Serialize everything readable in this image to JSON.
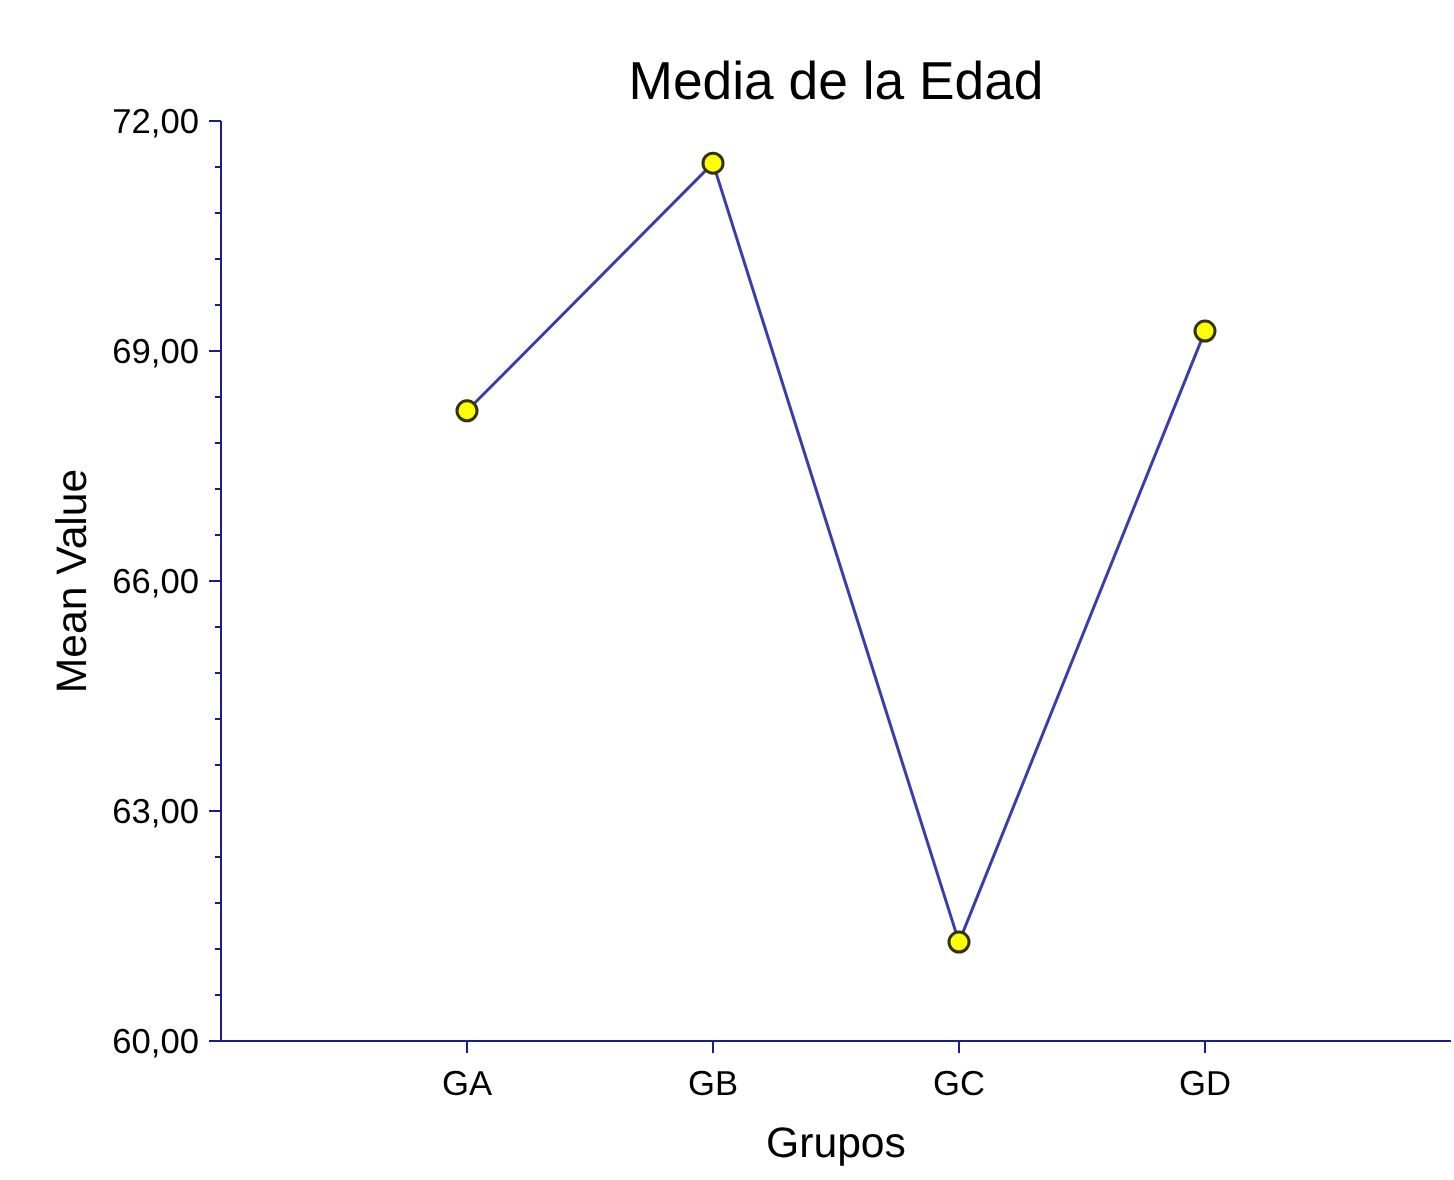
{
  "chart_data": {
    "type": "line",
    "title": "Media de la Edad",
    "xlabel": "Grupos",
    "ylabel": "Mean Value",
    "categories": [
      "GA",
      "GB",
      "GC",
      "GD"
    ],
    "series": [
      {
        "color": "#3c3ca8",
        "values": [
          68.22,
          71.45,
          61.29,
          69.26
        ]
      }
    ],
    "ylim": [
      60,
      72
    ],
    "yticks": [
      {
        "value": 60,
        "label": "60,00"
      },
      {
        "value": 63,
        "label": "63,00"
      },
      {
        "value": 66,
        "label": "66,00"
      },
      {
        "value": 69,
        "label": "69,00"
      },
      {
        "value": 72,
        "label": "72,00"
      }
    ],
    "marker": "circle",
    "line_style": "solid"
  }
}
